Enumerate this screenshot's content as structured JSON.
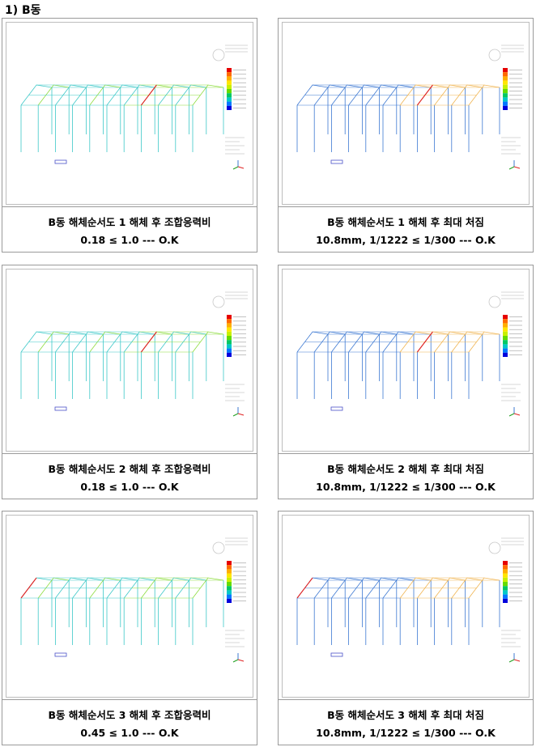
{
  "section_title": "1) B동",
  "panels": [
    {
      "title": "B동 해체순서도 1 해체 후 조합응력비",
      "result": "0.18 ≤ 1.0 --- O.K",
      "kind": "stress"
    },
    {
      "title": "B동 해체순서도 1 해체 후 최대 처짐",
      "result": "10.8mm, 1/1222 ≤ 1/300 --- O.K",
      "kind": "deflection"
    },
    {
      "title": "B동 해체순서도 2 해체 후 조합응력비",
      "result": "0.18 ≤ 1.0 --- O.K",
      "kind": "stress"
    },
    {
      "title": "B동 해체순서도 2 해체 후 최대 처짐",
      "result": "10.8mm, 1/1222 ≤ 1/300 --- O.K",
      "kind": "deflection"
    },
    {
      "title": "B동 해체순서도 3 해체 후 조합응력비",
      "result": "0.45 ≤ 1.0 --- O.K",
      "kind": "stress"
    },
    {
      "title": "B동 해체순서도 3 해체 후 최대 처짐",
      "result": "10.8mm, 1/1222 ≤ 1/300 --- O.K",
      "kind": "deflection"
    }
  ],
  "legend_colors": [
    "#e60000",
    "#ff6a00",
    "#ffae00",
    "#ffe600",
    "#c8f000",
    "#64dc00",
    "#00c864",
    "#00c8c8",
    "#0078ff",
    "#0000dc"
  ],
  "colors": {
    "stress_frame": "#3cc8c8",
    "stress_frame_alt": "#8cdc3c",
    "deflection_frame": "#3c78d2",
    "deflection_warm": "#f0b450",
    "highlight": "#e02020"
  }
}
